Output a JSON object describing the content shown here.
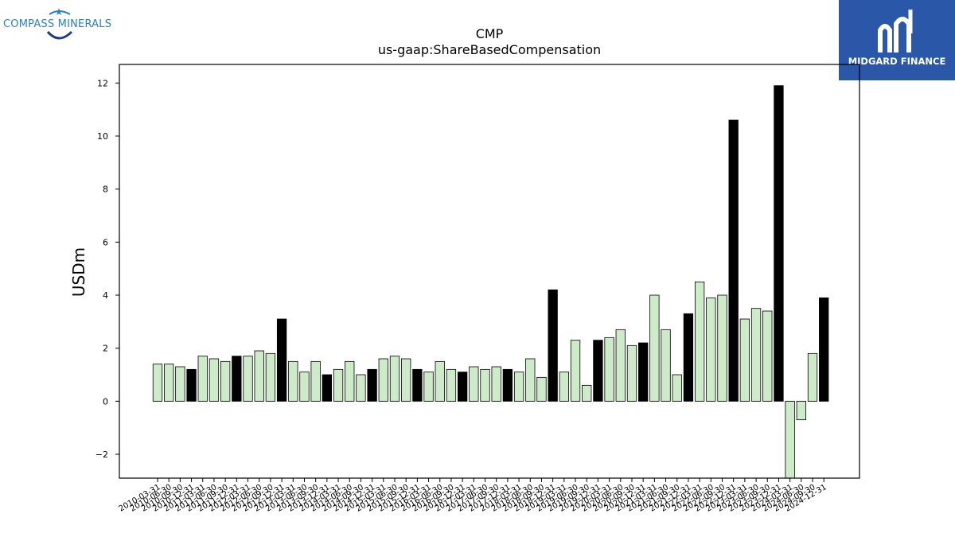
{
  "logos": {
    "left_brand": "COMPASS MINERALS",
    "right_brand": "MIDGARD FINANCE"
  },
  "colors": {
    "light_bar": "#cdeac9",
    "dark_bar": "#000000",
    "right_logo_bg": "#2a57a8",
    "left_logo_text": "#2a7fc0"
  },
  "chart_data": {
    "type": "bar",
    "title": "CMP",
    "subtitle": "us-gaap:ShareBasedCompensation",
    "ylabel": "USDm",
    "xlabel": "",
    "ylim": [
      -2.9,
      12.7
    ],
    "yticks": [
      -2,
      0,
      2,
      4,
      6,
      8,
      10,
      12
    ],
    "grid": false,
    "categories": [
      "2010-03-31",
      "2010-06-30",
      "2010-09-30",
      "2010-12-31",
      "2011-03-31",
      "2011-06-30",
      "2011-09-30",
      "2011-12-31",
      "2012-03-31",
      "2012-06-30",
      "2012-09-30",
      "2012-12-31",
      "2013-03-31",
      "2013-06-30",
      "2013-09-30",
      "2013-12-31",
      "2014-03-31",
      "2014-06-30",
      "2014-09-30",
      "2014-12-31",
      "2015-03-31",
      "2015-06-30",
      "2015-09-30",
      "2015-12-31",
      "2016-03-31",
      "2016-06-30",
      "2016-09-30",
      "2016-12-31",
      "2017-03-31",
      "2017-06-30",
      "2017-09-30",
      "2017-12-31",
      "2018-03-31",
      "2018-06-30",
      "2018-09-30",
      "2018-12-31",
      "2019-03-31",
      "2019-06-30",
      "2019-09-30",
      "2019-12-31",
      "2020-03-31",
      "2020-06-30",
      "2020-09-30",
      "2020-12-31",
      "2021-03-31",
      "2021-06-30",
      "2021-09-30",
      "2021-12-31",
      "2022-03-31",
      "2022-06-30",
      "2022-09-30",
      "2022-12-31",
      "2023-03-31",
      "2023-06-30",
      "2023-09-30",
      "2023-12-31",
      "2024-03-31",
      "2024-06-30",
      "2024-09-30",
      "2024-12-31"
    ],
    "values": [
      1.4,
      1.4,
      1.3,
      1.2,
      1.7,
      1.6,
      1.5,
      1.7,
      1.7,
      1.9,
      1.8,
      3.1,
      1.5,
      1.1,
      1.5,
      1.0,
      1.2,
      1.5,
      1.0,
      1.2,
      1.6,
      1.7,
      1.6,
      1.2,
      1.1,
      1.5,
      1.2,
      1.1,
      1.3,
      1.2,
      1.3,
      1.2,
      1.1,
      1.6,
      0.9,
      4.2,
      1.1,
      2.3,
      0.6,
      2.3,
      2.4,
      2.7,
      2.1,
      2.2,
      4.0,
      2.7,
      1.0,
      3.3,
      4.5,
      3.9,
      4.0,
      10.6,
      3.1,
      3.5,
      3.4,
      11.9,
      -3.0,
      -0.7,
      1.8,
      3.9
    ],
    "highlight_rule": "December quarter (annual) bars drawn black; other quarters light green"
  }
}
